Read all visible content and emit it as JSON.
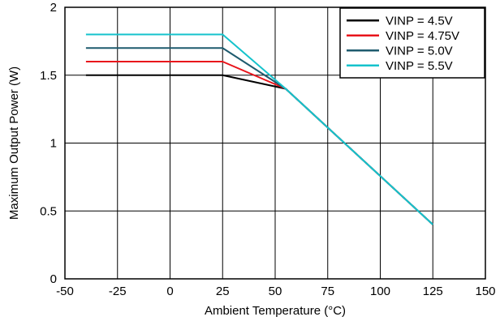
{
  "chart_data": {
    "type": "line",
    "title": "",
    "xlabel": "Ambient Temperature (°C)",
    "ylabel": "Maximum Output Power (W)",
    "xlim": [
      -50,
      150
    ],
    "ylim": [
      0,
      2
    ],
    "x_ticks": [
      -50,
      -25,
      0,
      25,
      50,
      75,
      100,
      125,
      150
    ],
    "y_ticks": [
      0,
      0.5,
      1,
      1.5,
      2
    ],
    "x_tick_labels": [
      "-50",
      "-25",
      "0",
      "25",
      "50",
      "75",
      "100",
      "125",
      "150"
    ],
    "y_tick_labels": [
      "0",
      "0.5",
      "1",
      "1.5",
      "2"
    ],
    "grid": true,
    "legend_position": "top-right",
    "series": [
      {
        "name": "VINP = 4.5V",
        "color": "#000000",
        "x": [
          -40,
          25,
          55,
          125
        ],
        "y": [
          1.5,
          1.5,
          1.4,
          0.4
        ]
      },
      {
        "name": "VINP = 4.75V",
        "color": "#e8141b",
        "x": [
          -40,
          25,
          55,
          125
        ],
        "y": [
          1.6,
          1.6,
          1.4,
          0.4
        ]
      },
      {
        "name": "VINP = 5.0V",
        "color": "#1e5b6e",
        "x": [
          -40,
          25,
          55,
          125
        ],
        "y": [
          1.7,
          1.7,
          1.4,
          0.4
        ]
      },
      {
        "name": "VINP = 5.5V",
        "color": "#15c3cc",
        "x": [
          -40,
          25,
          55,
          125
        ],
        "y": [
          1.8,
          1.8,
          1.4,
          0.4
        ]
      }
    ]
  }
}
